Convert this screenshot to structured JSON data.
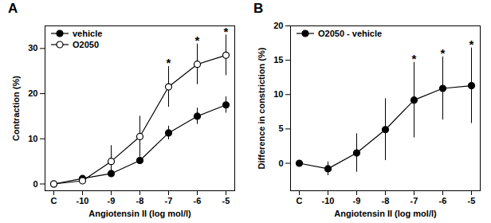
{
  "chart_data": [
    {
      "type": "line",
      "title": "A",
      "xlabel": "Angiotensin II (log mol/l)",
      "ylabel": "Contraction (%)",
      "categories": [
        "C",
        "-10",
        "-9",
        "-8",
        "-7",
        "-6",
        "-5"
      ],
      "series": [
        {
          "name": "vehicle",
          "color": "#000000",
          "marker": "filled_circle",
          "line_style": "solid",
          "values": [
            0,
            1.2,
            2.3,
            5.2,
            11.3,
            15.0,
            17.5
          ],
          "errors": [
            0,
            0.5,
            0.7,
            0.8,
            1.5,
            1.8,
            1.8
          ]
        },
        {
          "name": "O2050",
          "color": "#000000",
          "marker": "open_circle",
          "line_style": "solid",
          "values": [
            0,
            0.7,
            5.0,
            10.5,
            21.5,
            26.5,
            28.5
          ],
          "errors": [
            0,
            0.5,
            3.5,
            4.5,
            4.5,
            4.5,
            4.5
          ]
        }
      ],
      "annotations": [
        {
          "category": "-7",
          "text": "*"
        },
        {
          "category": "-6",
          "text": "*"
        },
        {
          "category": "-5",
          "text": "*"
        }
      ],
      "ylim": [
        -1.5,
        35
      ],
      "yticks": [
        0,
        10,
        20,
        30
      ],
      "legend": "upper left"
    },
    {
      "type": "line",
      "title": "B",
      "xlabel": "Angiotensin II (log mol/l)",
      "ylabel": "Difference in constriction (%)",
      "categories": [
        "C",
        "-10",
        "-9",
        "-8",
        "-7",
        "-6",
        "-5"
      ],
      "series": [
        {
          "name": "O2050 - vehicle",
          "color": "#000000",
          "marker": "filled_circle",
          "line_style": "solid",
          "values": [
            0,
            -0.8,
            1.5,
            4.9,
            9.2,
            10.9,
            11.3
          ],
          "errors": [
            0,
            1.0,
            2.8,
            4.5,
            5.5,
            4.6,
            5.5
          ]
        }
      ],
      "annotations": [
        {
          "category": "-7",
          "text": "*"
        },
        {
          "category": "-6",
          "text": "*"
        },
        {
          "category": "-5",
          "text": "*"
        }
      ],
      "ylim": [
        -4,
        20
      ],
      "yticks": [
        0,
        5,
        10,
        15,
        20
      ],
      "legend": "upper left"
    }
  ]
}
